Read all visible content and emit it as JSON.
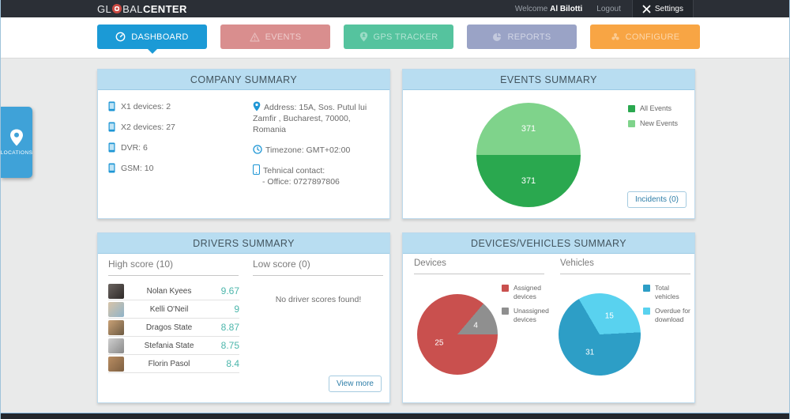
{
  "header": {
    "logo_part1": "GL",
    "logo_part2": "BAL",
    "logo_part3": "CENTER",
    "welcome_label": "Welcome",
    "username": "Al Bilotti",
    "logout_label": "Logout",
    "settings_label": "Settings"
  },
  "nav": {
    "tabs": [
      {
        "label": "DASHBOARD",
        "color": "#1b9ad6",
        "active": true
      },
      {
        "label": "EVENTS",
        "color": "#d98e8e",
        "active": false
      },
      {
        "label": "GPS TRACKER",
        "color": "#55c39e",
        "active": false
      },
      {
        "label": "REPORTS",
        "color": "#9aa3c6",
        "active": false
      },
      {
        "label": "CONFIGURE",
        "color": "#f8a544",
        "active": false
      }
    ]
  },
  "locations_tab": {
    "label": "LOCATIONS",
    "color": "#3fa2d8"
  },
  "company": {
    "title": "COMPANY SUMMARY",
    "devices": [
      {
        "label": "X1 devices:",
        "value": "2"
      },
      {
        "label": "X2 devices:",
        "value": "27"
      },
      {
        "label": "DVR:",
        "value": "6"
      },
      {
        "label": "GSM:",
        "value": "10"
      }
    ],
    "address": "Address: 15A, Sos. Putul lui Zamfir , Bucharest, 70000, Romania",
    "timezone": "Timezone: GMT+02:00",
    "contact_label": "Tehnical contact:",
    "contact_office": "- Office: 0727897806"
  },
  "events": {
    "title": "EVENTS SUMMARY",
    "incidents_button": "Incidents (0)"
  },
  "drivers": {
    "title": "DRIVERS SUMMARY",
    "high_header": "High score (10)",
    "low_header": "Low score (0)",
    "score_color": "#4cb6ab",
    "high_scores": [
      {
        "name": "Nolan Kyees",
        "score": "9.67",
        "avatar_colors": [
          "#6b6460",
          "#2e2a28"
        ]
      },
      {
        "name": "Kelli O'Neil",
        "score": "9",
        "avatar_colors": [
          "#d8c4a8",
          "#8fb3c9"
        ]
      },
      {
        "name": "Dragos State",
        "score": "8.87",
        "avatar_colors": [
          "#c9a176",
          "#6d5b43"
        ]
      },
      {
        "name": "Stefania State",
        "score": "8.75",
        "avatar_colors": [
          "#cfcfcf",
          "#8a8a8a"
        ]
      },
      {
        "name": "Florin Pasol",
        "score": "8.4",
        "avatar_colors": [
          "#b98d62",
          "#7d5f41"
        ]
      }
    ],
    "low_empty_message": "No driver scores found!",
    "view_more_button": "View more"
  },
  "devices_vehicles": {
    "title": "DEVICES/VEHICLES SUMMARY",
    "devices_header": "Devices",
    "vehicles_header": "Vehicles"
  },
  "chart_data": [
    {
      "type": "pie",
      "title": "Events Summary",
      "legend_position": "top-right",
      "start_angle": 90,
      "slices": [
        {
          "label": "All Events",
          "value": 371,
          "color": "#2aa84f"
        },
        {
          "label": "New Events",
          "value": 371,
          "color": "#7fd38b"
        }
      ]
    },
    {
      "type": "pie",
      "title": "Devices",
      "legend_position": "right",
      "start_angle": 90,
      "slices": [
        {
          "label": "Assigned devices",
          "value": 25,
          "color": "#c9504e"
        },
        {
          "label": "Unassigned devices",
          "value": 4,
          "color": "#8f8f8f"
        }
      ]
    },
    {
      "type": "pie",
      "title": "Vehicles",
      "legend_position": "right",
      "start_angle": 87,
      "slices": [
        {
          "label": "Total vehicles",
          "value": 31,
          "color": "#2d9ec6"
        },
        {
          "label": "Overdue for download",
          "value": 15,
          "color": "#59d2ef"
        }
      ]
    }
  ]
}
